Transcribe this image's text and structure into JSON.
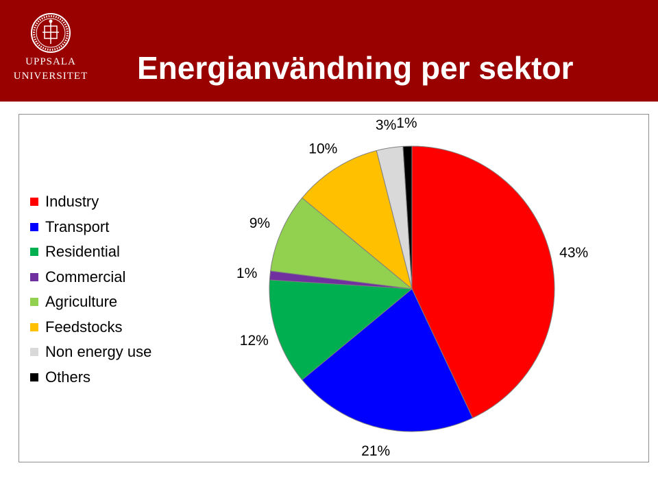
{
  "header": {
    "title": "Energianvändning per sektor",
    "logo_line1": "UPPSALA",
    "logo_line2": "UNIVERSITET",
    "background_color": "#990000"
  },
  "chart_data": {
    "type": "pie",
    "title": "",
    "legend_position": "left",
    "categories": [
      "Industry",
      "Transport",
      "Residential",
      "Commercial",
      "Agriculture",
      "Feedstocks",
      "Non energy use",
      "Others"
    ],
    "values": [
      43,
      21,
      12,
      1,
      9,
      10,
      3,
      1
    ],
    "data_labels": [
      "43%",
      "21%",
      "12%",
      "1%",
      "9%",
      "10%",
      "3%",
      "1%"
    ],
    "colors": [
      "#ff0000",
      "#0000ff",
      "#00b050",
      "#7030a0",
      "#92d050",
      "#ffc000",
      "#d9d9d9",
      "#000000"
    ]
  }
}
